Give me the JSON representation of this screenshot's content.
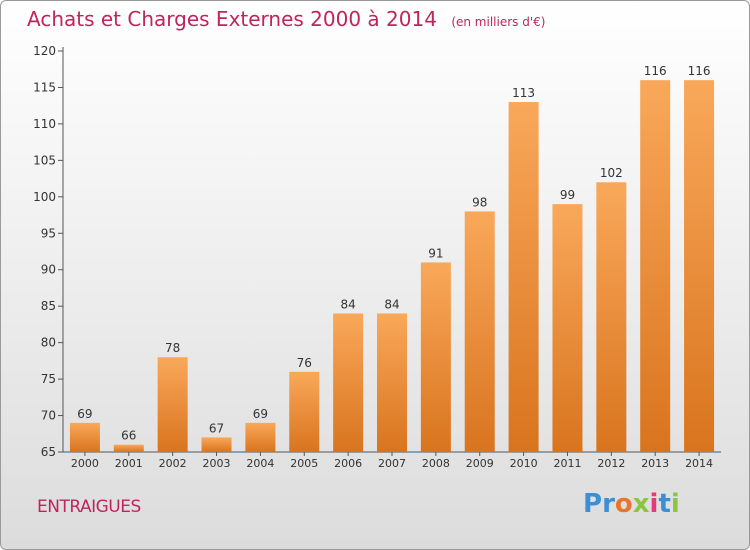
{
  "header": {
    "title": "Achats et Charges Externes 2000 à 2014",
    "subtitle": "(en milliers d'€)"
  },
  "footer": {
    "town": "ENTRAIGUES",
    "logo_letters": [
      "P",
      "r",
      "o",
      "x",
      "i",
      "t",
      "i"
    ],
    "logo_colors": [
      "#3a8fd6",
      "#3a8fd6",
      "#e8772e",
      "#8cc63f",
      "#e23a7a",
      "#3a8fd6",
      "#8cc63f"
    ]
  },
  "colors": {
    "bar_light": "#f9a85a",
    "bar_dark": "#d9741e",
    "title": "#c0245c"
  },
  "chart_data": {
    "type": "bar",
    "title": "Achats et Charges Externes 2000 à 2014",
    "subtitle": "(en milliers d'€)",
    "categories": [
      "2000",
      "2001",
      "2002",
      "2003",
      "2004",
      "2005",
      "2006",
      "2007",
      "2008",
      "2009",
      "2010",
      "2011",
      "2012",
      "2013",
      "2014"
    ],
    "values": [
      69,
      66,
      78,
      67,
      69,
      76,
      84,
      84,
      91,
      98,
      113,
      99,
      102,
      116,
      116
    ],
    "ylim": [
      65,
      120
    ],
    "yticks": [
      65,
      70,
      75,
      80,
      85,
      90,
      95,
      100,
      105,
      110,
      115,
      120
    ],
    "xlabel": "",
    "ylabel": "",
    "grid": false,
    "legend": "none"
  }
}
